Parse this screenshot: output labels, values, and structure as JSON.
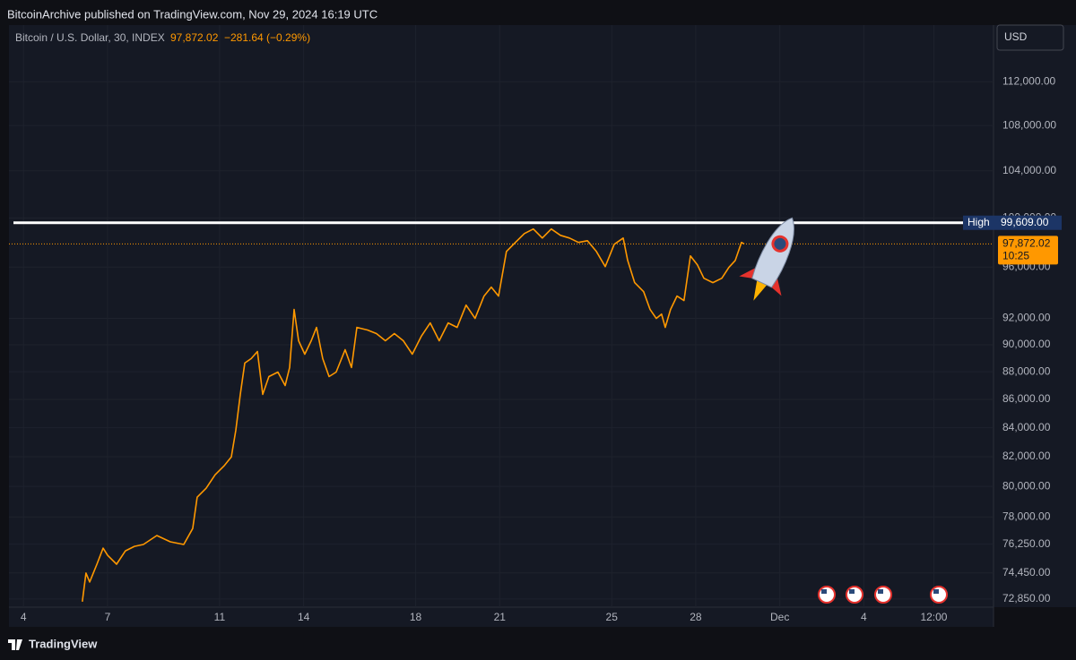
{
  "header": "BitcoinArchive published on TradingView.com, Nov 29, 2024 16:19 UTC",
  "footer": "TradingView",
  "chart_data": {
    "type": "line",
    "title": "Bitcoin / U.S. Dollar, 30, INDEX",
    "last_label": "97,872.02",
    "change_label": "−281.64 (−0.29%)",
    "currency": "USD",
    "color": "#ff9800",
    "log_scale": true,
    "grid": true,
    "x": [
      6.1,
      6.23,
      6.36,
      6.62,
      6.84,
      7.0,
      7.32,
      7.64,
      7.96,
      8.28,
      8.76,
      9.24,
      9.72,
      10.04,
      10.2,
      10.52,
      10.84,
      11.16,
      11.42,
      11.58,
      11.74,
      11.9,
      12.13,
      12.35,
      12.54,
      12.76,
      13.08,
      13.34,
      13.5,
      13.66,
      13.82,
      14.04,
      14.27,
      14.46,
      14.68,
      14.91,
      15.16,
      15.48,
      15.71,
      15.9,
      16.28,
      16.6,
      16.92,
      17.24,
      17.56,
      17.88,
      18.2,
      18.52,
      18.84,
      19.16,
      19.48,
      19.8,
      20.12,
      20.44,
      20.7,
      20.96,
      21.24,
      21.56,
      21.88,
      22.2,
      22.52,
      22.84,
      23.17,
      23.49,
      23.81,
      24.13,
      24.45,
      24.77,
      25.09,
      25.41,
      25.57,
      25.82,
      26.14,
      26.37,
      26.59,
      26.78,
      26.91,
      27.1,
      27.33,
      27.58,
      27.81,
      28.06,
      28.29,
      28.61,
      28.93,
      29.18,
      29.41,
      29.63,
      29.73
    ],
    "values": [
      72690,
      74440,
      73890,
      74990,
      76000,
      75550,
      74990,
      75830,
      76110,
      76230,
      76800,
      76400,
      76230,
      77250,
      79290,
      79880,
      80780,
      81380,
      81990,
      83830,
      86360,
      88640,
      88970,
      89500,
      86360,
      87650,
      87980,
      87000,
      88310,
      92680,
      90300,
      89300,
      90300,
      91310,
      88970,
      87650,
      87980,
      89630,
      88310,
      91310,
      91110,
      90840,
      90300,
      90840,
      90300,
      89300,
      90630,
      91650,
      90300,
      91650,
      91310,
      93020,
      91990,
      93720,
      94420,
      93720,
      97260,
      97990,
      98720,
      99090,
      98350,
      99090,
      98570,
      98350,
      97990,
      98130,
      97260,
      96040,
      97840,
      98350,
      96540,
      94770,
      94060,
      92680,
      91990,
      92330,
      91310,
      92680,
      93720,
      93370,
      96900,
      96180,
      95120,
      94770,
      95120,
      95970,
      96540,
      97990,
      97872.02
    ],
    "xlim": [
      3.48,
      38.63
    ],
    "ylim": [
      72360,
      117400
    ],
    "xticks": [
      4,
      7,
      11,
      14,
      18,
      21,
      25,
      28,
      {
        "value": 31,
        "label": "Dec"
      },
      {
        "value": 34,
        "label": "4"
      },
      {
        "value": 36.5,
        "label": "12:00"
      }
    ],
    "yticks": [
      {
        "value": 72850,
        "label": "72,850.00"
      },
      {
        "value": 74450,
        "label": "74,450.00"
      },
      {
        "value": 76250,
        "label": "76,250.00"
      },
      {
        "value": 78000,
        "label": "78,000.00"
      },
      {
        "value": 80000,
        "label": "80,000.00"
      },
      {
        "value": 82000,
        "label": "82,000.00"
      },
      {
        "value": 84000,
        "label": "84,000.00"
      },
      {
        "value": 86000,
        "label": "86,000.00"
      },
      {
        "value": 88000,
        "label": "88,000.00"
      },
      {
        "value": 90000,
        "label": "90,000.00"
      },
      {
        "value": 92000,
        "label": "92,000.00"
      },
      {
        "value": 96000,
        "label": "96,000.00"
      },
      {
        "value": 100000,
        "label": "100,000.00"
      },
      {
        "value": 104000,
        "label": "104,000.00"
      },
      {
        "value": 108000,
        "label": "108,000.00"
      },
      {
        "value": 112000,
        "label": "112,000.00"
      }
    ],
    "high": {
      "label": "High",
      "value": 99609,
      "value_label": "99,609.00"
    },
    "last": {
      "value": 97872.02,
      "value_label": "97,872.02",
      "countdown": "10:25"
    }
  }
}
